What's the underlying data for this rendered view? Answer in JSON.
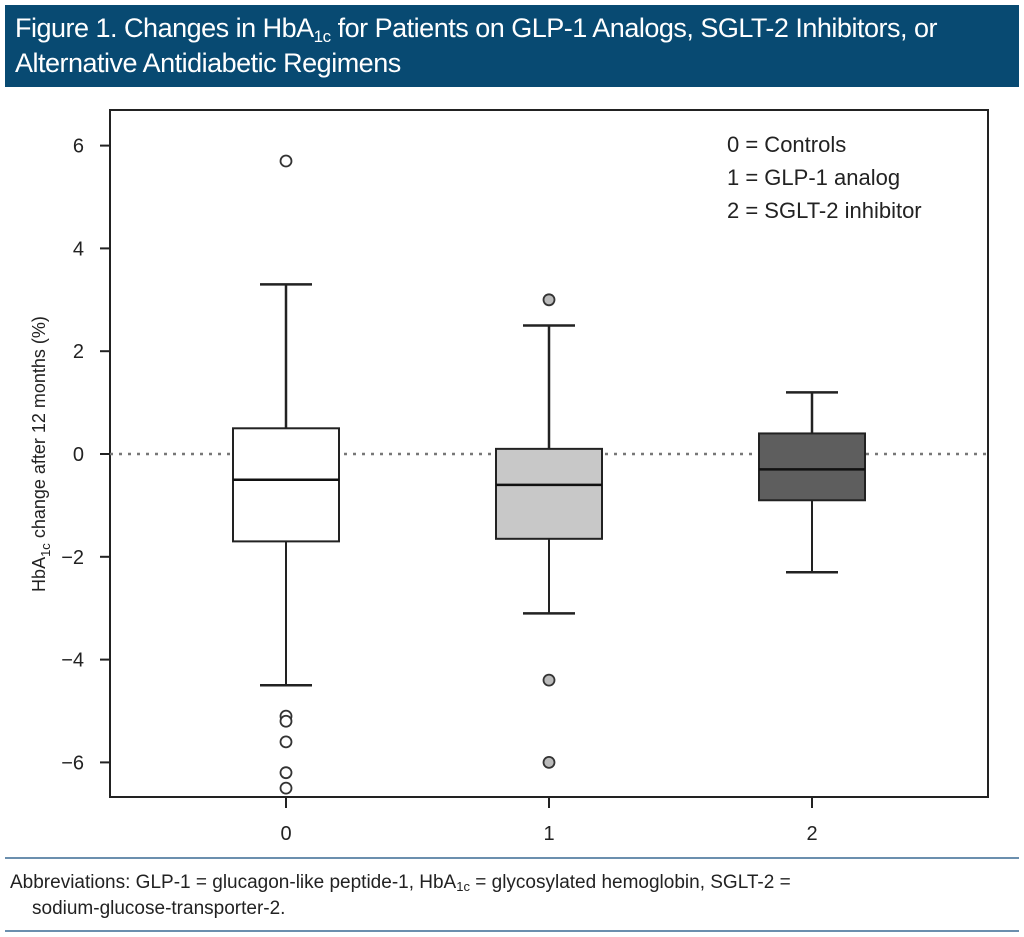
{
  "title": {
    "pre": "Figure 1. Changes in HbA",
    "sub": "1c",
    "post": " for Patients on GLP-1 Analogs, SGLT-2 Inhibitors, or Alternative Antidiabetic Regimens"
  },
  "chart_data": {
    "type": "box",
    "ylabel": {
      "pre": "HbA",
      "sub": "1c",
      "post": " change after 12 months (%)"
    },
    "xlabel": "",
    "categories": [
      "0",
      "1",
      "2"
    ],
    "ylim": [
      -6.6,
      6.8
    ],
    "yticks": [
      6,
      4,
      2,
      0,
      -2,
      -4,
      -6
    ],
    "ytick_labels": [
      "6",
      "4",
      "2",
      "0",
      "−2",
      "−4",
      "−6"
    ],
    "reference_line": {
      "y": 0,
      "style": "dotted"
    },
    "legend": [
      "0 = Controls",
      "1 = GLP-1 analog",
      "2 = SGLT-2 inhibitor"
    ],
    "legend_position": "top-right",
    "grid": false,
    "boxes": [
      {
        "category": "0",
        "whisker_low": -4.5,
        "q1": -1.7,
        "median": -0.5,
        "q3": 0.5,
        "whisker_high": 3.3,
        "outliers": [
          5.7,
          -5.1,
          -5.2,
          -5.6,
          -6.2,
          -6.5
        ],
        "fill": "#ffffff"
      },
      {
        "category": "1",
        "whisker_low": -3.1,
        "q1": -1.65,
        "median": -0.6,
        "q3": 0.1,
        "whisker_high": 2.5,
        "outliers": [
          3.0,
          -4.4,
          -6.0
        ],
        "fill": "#c8c8c8"
      },
      {
        "category": "2",
        "whisker_low": -2.3,
        "q1": -0.9,
        "median": -0.3,
        "q3": 0.4,
        "whisker_high": 1.2,
        "outliers": [],
        "fill": "#5e5e5e"
      }
    ]
  },
  "footnote": {
    "p1": "Abbreviations: GLP-1 = glucagon-like peptide-1, HbA",
    "sub": "1c",
    "p2": " = glycosylated hemoglobin, SGLT-2 =",
    "line2": "sodium-glucose-transporter-2."
  },
  "colors": {
    "title_bg": "#084a72",
    "rule": "#6b8fae"
  }
}
